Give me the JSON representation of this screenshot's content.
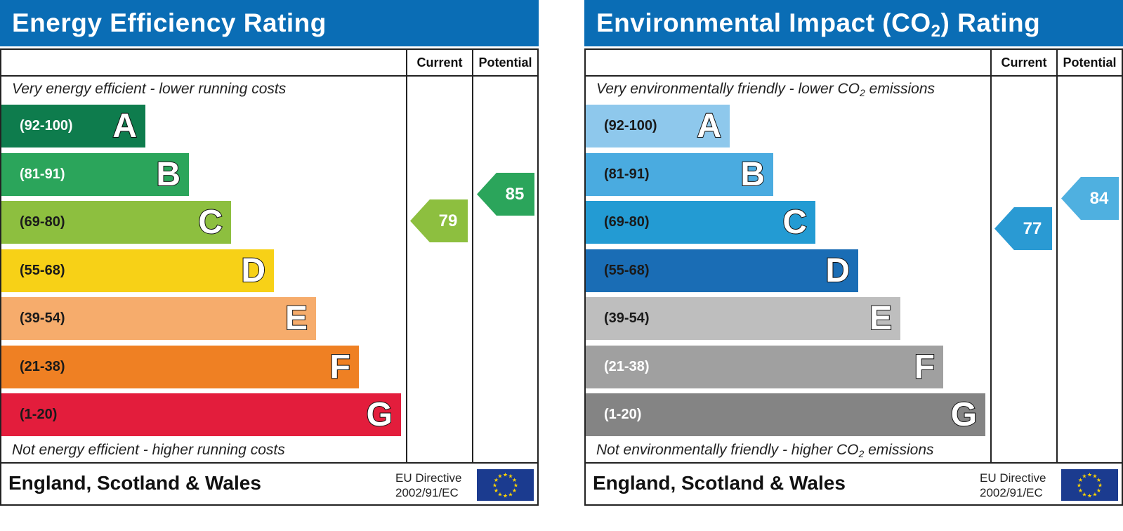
{
  "charts": [
    {
      "title": "Energy Efficiency Rating",
      "title_sub": "",
      "title_after": "",
      "col_current": "Current",
      "col_potential": "Potential",
      "top_note": "Very energy efficient - lower running costs",
      "top_note_sub": "",
      "top_note_after": "",
      "bottom_note": "Not energy efficient - higher running costs",
      "bottom_note_sub": "",
      "bottom_note_after": "",
      "region": "England, Scotland & Wales",
      "eu_line1": "EU Directive",
      "eu_line2": "2002/91/EC",
      "current_value": "79",
      "potential_value": "85",
      "current_color": "#8dbf3f",
      "potential_color": "#2ba55b",
      "bands": [
        {
          "range": "(92-100)",
          "letter": "A",
          "color": "#0e7c4d",
          "text_color": "#ffffff"
        },
        {
          "range": "(81-91)",
          "letter": "B",
          "color": "#2ba55b",
          "text_color": "#ffffff"
        },
        {
          "range": "(69-80)",
          "letter": "C",
          "color": "#8dbf3f",
          "text_color": "#1a1a1a"
        },
        {
          "range": "(55-68)",
          "letter": "D",
          "color": "#f7d117",
          "text_color": "#1a1a1a"
        },
        {
          "range": "(39-54)",
          "letter": "E",
          "color": "#f6ac6c",
          "text_color": "#1a1a1a"
        },
        {
          "range": "(21-38)",
          "letter": "F",
          "color": "#ef8023",
          "text_color": "#1a1a1a"
        },
        {
          "range": "(1-20)",
          "letter": "G",
          "color": "#e31d3c",
          "text_color": "#1a1a1a"
        }
      ]
    },
    {
      "title": "Environmental Impact (CO",
      "title_sub": "2",
      "title_after": ") Rating",
      "col_current": "Current",
      "col_potential": "Potential",
      "top_note": "Very environmentally friendly - lower CO",
      "top_note_sub": "2",
      "top_note_after": " emissions",
      "bottom_note": "Not environmentally friendly - higher CO",
      "bottom_note_sub": "2",
      "bottom_note_after": " emissions",
      "region": "England, Scotland & Wales",
      "eu_line1": "EU Directive",
      "eu_line2": "2002/91/EC",
      "current_value": "77",
      "potential_value": "84",
      "current_color": "#2a9ad3",
      "potential_color": "#4fb0e0",
      "bands": [
        {
          "range": "(92-100)",
          "letter": "A",
          "color": "#8ec8ec",
          "text_color": "#1a1a1a"
        },
        {
          "range": "(81-91)",
          "letter": "B",
          "color": "#4aabe0",
          "text_color": "#1a1a1a"
        },
        {
          "range": "(69-80)",
          "letter": "C",
          "color": "#239bd3",
          "text_color": "#1a1a1a"
        },
        {
          "range": "(55-68)",
          "letter": "D",
          "color": "#1a6db5",
          "text_color": "#1a1a1a"
        },
        {
          "range": "(39-54)",
          "letter": "E",
          "color": "#bebebe",
          "text_color": "#1a1a1a"
        },
        {
          "range": "(21-38)",
          "letter": "F",
          "color": "#a0a0a0",
          "text_color": "#ffffff"
        },
        {
          "range": "(1-20)",
          "letter": "G",
          "color": "#848484",
          "text_color": "#ffffff"
        }
      ]
    }
  ],
  "chart_data": [
    {
      "type": "bar",
      "title": "Energy Efficiency Rating",
      "categories": [
        "A",
        "B",
        "C",
        "D",
        "E",
        "F",
        "G"
      ],
      "bands": [
        "(92-100)",
        "(81-91)",
        "(69-80)",
        "(55-68)",
        "(39-54)",
        "(21-38)",
        "(1-20)"
      ],
      "series": [
        {
          "name": "Current",
          "value": 79,
          "band": "C"
        },
        {
          "name": "Potential",
          "value": 85,
          "band": "B"
        }
      ]
    },
    {
      "type": "bar",
      "title": "Environmental Impact (CO2) Rating",
      "categories": [
        "A",
        "B",
        "C",
        "D",
        "E",
        "F",
        "G"
      ],
      "bands": [
        "(92-100)",
        "(81-91)",
        "(69-80)",
        "(55-68)",
        "(39-54)",
        "(21-38)",
        "(1-20)"
      ],
      "series": [
        {
          "name": "Current",
          "value": 77,
          "band": "C"
        },
        {
          "name": "Potential",
          "value": 84,
          "band": "B"
        }
      ]
    }
  ]
}
